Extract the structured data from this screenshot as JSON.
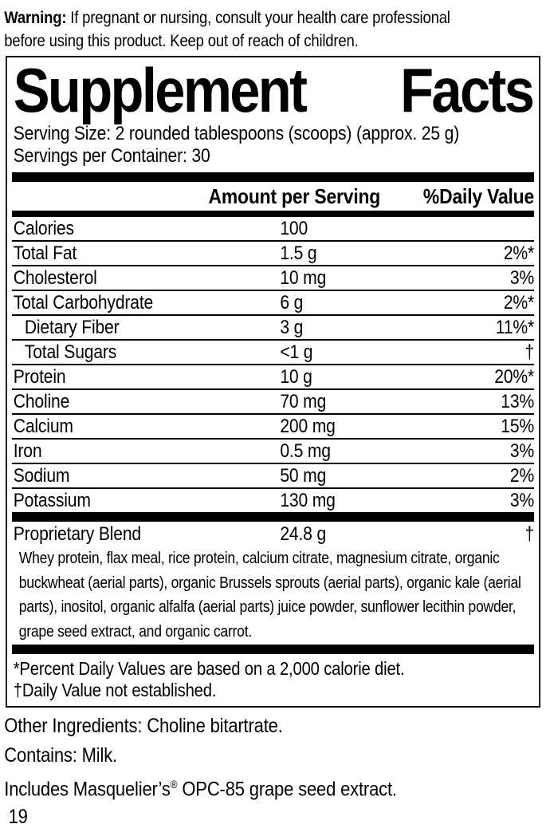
{
  "colors": {
    "ink": "#000000",
    "paper": "#ffffff"
  },
  "warning": {
    "label": "Warning:",
    "lines": [
      "If pregnant or nursing, consult your health care professional",
      "before using this product. Keep out of reach of children."
    ]
  },
  "panel": {
    "title": {
      "word1": "Supplement",
      "word2": "Facts"
    },
    "serving_size": "Serving Size: 2 rounded tablespoons (scoops) (approx. 25 g)",
    "servings_per_container": "Servings per Container: 30",
    "columns": {
      "amount": "Amount per Serving",
      "daily_value": "%Daily Value"
    },
    "rows": [
      {
        "name": "Calories",
        "amount": "100",
        "dv": "",
        "indent": false
      },
      {
        "name": "Total Fat",
        "amount": "1.5 g",
        "dv": "2%*",
        "indent": false
      },
      {
        "name": "Cholesterol",
        "amount": "10 mg",
        "dv": "3%",
        "indent": false
      },
      {
        "name": "Total Carbohydrate",
        "amount": "6 g",
        "dv": "2%*",
        "indent": false
      },
      {
        "name": "Dietary Fiber",
        "amount": "3 g",
        "dv": "11%*",
        "indent": true
      },
      {
        "name": "Total Sugars",
        "amount": "<1 g",
        "dv": "†",
        "indent": true
      },
      {
        "name": "Protein",
        "amount": "10 g",
        "dv": "20%*",
        "indent": false
      },
      {
        "name": "Choline",
        "amount": "70 mg",
        "dv": "13%",
        "indent": false
      },
      {
        "name": "Calcium",
        "amount": "200 mg",
        "dv": "15%",
        "indent": false
      },
      {
        "name": "Iron",
        "amount": "0.5 mg",
        "dv": "3%",
        "indent": false
      },
      {
        "name": "Sodium",
        "amount": "50 mg",
        "dv": "2%",
        "indent": false
      },
      {
        "name": "Potassium",
        "amount": "130 mg",
        "dv": "3%",
        "indent": false
      }
    ],
    "blend": {
      "name": "Proprietary Blend",
      "amount": "24.8 g",
      "dv": "†",
      "description": "Whey protein, flax meal, rice protein, calcium citrate, magnesium citrate, organic buckwheat (aerial parts), organic Brussels sprouts (aerial parts), organic kale (aerial parts), inositol, organic alfalfa (aerial parts) juice powder, sunflower lecithin powder, grape seed extract, and organic carrot."
    },
    "footnotes": [
      "*Percent Daily Values are based on a 2,000 calorie diet.",
      "†Daily Value not established."
    ]
  },
  "other_ingredients": "Other Ingredients: Choline bitartrate.",
  "contains": "Contains: Milk.",
  "includes": {
    "pre": "Includes Masquelier’s",
    "reg": "®",
    "post": " OPC-85 grape seed extract."
  },
  "page_number": "19"
}
